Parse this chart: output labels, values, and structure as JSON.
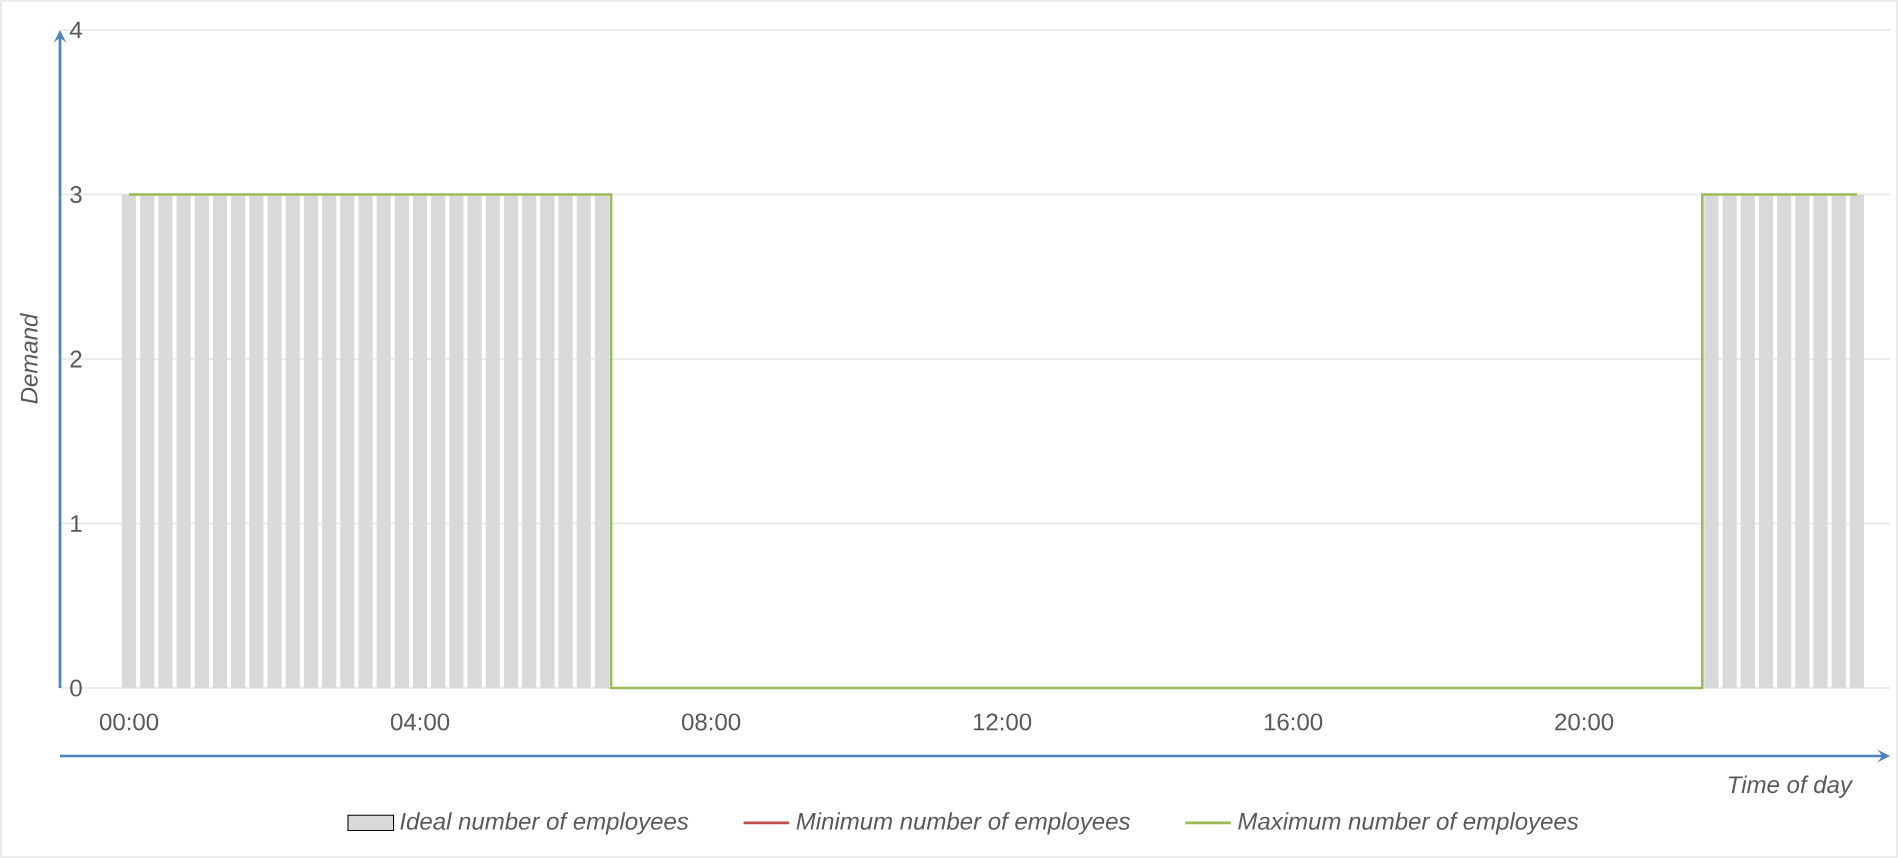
{
  "chart_data": {
    "type": "bar",
    "xlabel": "Time of day",
    "ylabel": "Demand",
    "categories": [
      "00:00",
      null,
      null,
      null,
      null,
      null,
      null,
      null,
      null,
      null,
      null,
      null,
      null,
      null,
      null,
      null,
      "04:00",
      null,
      null,
      null,
      null,
      null,
      null,
      null,
      null,
      null,
      null,
      null,
      null,
      null,
      null,
      null,
      "08:00",
      null,
      null,
      null,
      null,
      null,
      null,
      null,
      null,
      null,
      null,
      null,
      null,
      null,
      null,
      null,
      "12:00",
      null,
      null,
      null,
      null,
      null,
      null,
      null,
      null,
      null,
      null,
      null,
      null,
      null,
      null,
      null,
      "16:00",
      null,
      null,
      null,
      null,
      null,
      null,
      null,
      null,
      null,
      null,
      null,
      null,
      null,
      null,
      null,
      "20:00",
      null,
      null,
      null,
      null,
      null,
      null,
      null,
      null,
      null,
      null,
      null,
      null,
      null,
      null,
      null
    ],
    "series": [
      {
        "name": "Ideal number of employees",
        "color": "#d9d9d9",
        "values": [
          3,
          3,
          3,
          3,
          3,
          3,
          3,
          3,
          3,
          3,
          3,
          3,
          3,
          3,
          3,
          3,
          3,
          3,
          3,
          3,
          3,
          3,
          3,
          3,
          3,
          3,
          3,
          0,
          0,
          0,
          0,
          0,
          0,
          0,
          0,
          0,
          0,
          0,
          0,
          0,
          0,
          0,
          0,
          0,
          0,
          0,
          0,
          0,
          0,
          0,
          0,
          0,
          0,
          0,
          0,
          0,
          0,
          0,
          0,
          0,
          0,
          0,
          0,
          0,
          0,
          0,
          0,
          0,
          0,
          0,
          0,
          0,
          0,
          0,
          0,
          0,
          0,
          0,
          0,
          0,
          0,
          0,
          0,
          0,
          0,
          0,
          0,
          3,
          3,
          3,
          3,
          3,
          3,
          3,
          3,
          3
        ]
      },
      {
        "name": "Minimum number of employees",
        "type": "step",
        "color": "#c0504d",
        "values": [
          null,
          null,
          null,
          null,
          null,
          null,
          null,
          null,
          null,
          null,
          null,
          null,
          null,
          null,
          null,
          null,
          null,
          null,
          null,
          null,
          null,
          null,
          null,
          null,
          null,
          null,
          null,
          null,
          null,
          null,
          null,
          null,
          null,
          null,
          null,
          null,
          null,
          null,
          null,
          null,
          null,
          null,
          null,
          null,
          null,
          null,
          null,
          null,
          null,
          null,
          null,
          null,
          null,
          null,
          null,
          null,
          null,
          null,
          null,
          null,
          null,
          null,
          null,
          null,
          null,
          null,
          null,
          null,
          null,
          null,
          null,
          null,
          null,
          null,
          null,
          null,
          null,
          null,
          null,
          null,
          null,
          null,
          null,
          null,
          null,
          null,
          null,
          null,
          null,
          null,
          null,
          null,
          null,
          null,
          null,
          null
        ]
      },
      {
        "name": "Maximum number of employees",
        "type": "step",
        "color": "#9bbb59",
        "values": [
          3,
          3,
          3,
          3,
          3,
          3,
          3,
          3,
          3,
          3,
          3,
          3,
          3,
          3,
          3,
          3,
          3,
          3,
          3,
          3,
          3,
          3,
          3,
          3,
          3,
          3,
          3,
          0,
          0,
          0,
          0,
          0,
          0,
          0,
          0,
          0,
          0,
          0,
          0,
          0,
          0,
          0,
          0,
          0,
          0,
          0,
          0,
          0,
          0,
          0,
          0,
          0,
          0,
          0,
          0,
          0,
          0,
          0,
          0,
          0,
          0,
          0,
          0,
          0,
          0,
          0,
          0,
          0,
          0,
          0,
          0,
          0,
          0,
          0,
          0,
          0,
          0,
          0,
          0,
          0,
          0,
          0,
          0,
          0,
          0,
          0,
          0,
          3,
          3,
          3,
          3,
          3,
          3,
          3,
          3,
          3
        ]
      }
    ],
    "ylim": [
      0,
      4
    ],
    "yticks": [
      0,
      1,
      2,
      3,
      4
    ],
    "grid": "y",
    "legend": "bottom"
  }
}
